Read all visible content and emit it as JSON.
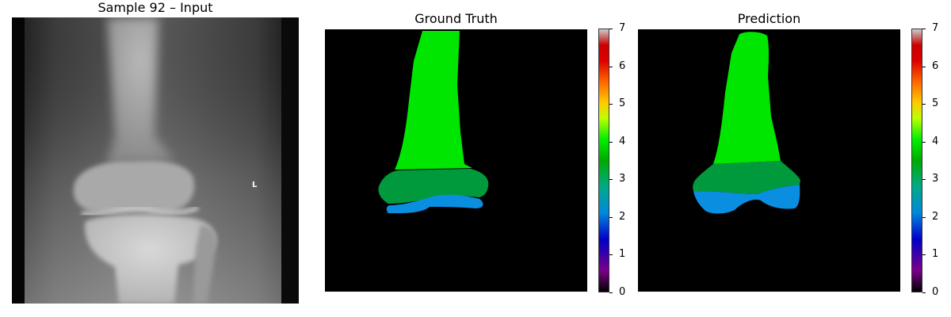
{
  "panels": {
    "input": {
      "title": "Sample 92 – Input",
      "marker_text": "L"
    },
    "ground_truth": {
      "title": "Ground Truth"
    },
    "prediction": {
      "title": "Prediction"
    }
  },
  "colorbar": {
    "ticks": [
      "0",
      "1",
      "2",
      "3",
      "4",
      "5",
      "6",
      "7"
    ],
    "colormap": "nipy_spectral",
    "range": [
      0,
      7
    ]
  },
  "class_colors": {
    "background": "#000000",
    "class_2": "#0a8fe0",
    "class_3": "#009a3c",
    "class_4": "#00e600"
  }
}
